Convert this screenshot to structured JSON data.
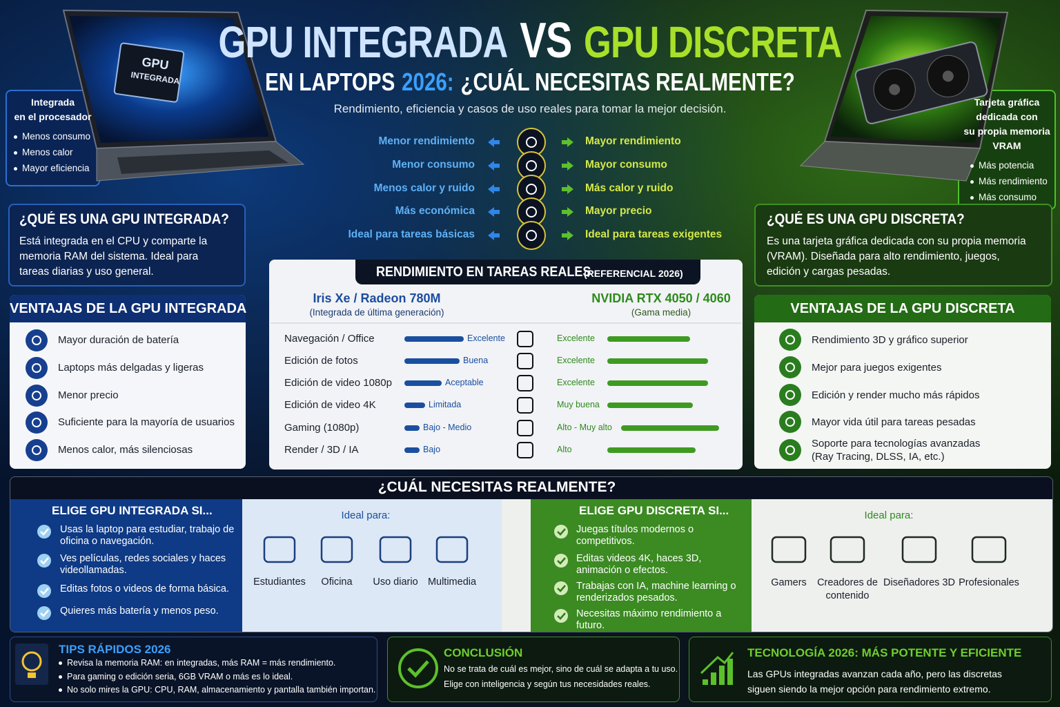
{
  "header": {
    "title_left": "GPU INTEGRADA",
    "vs": "VS",
    "title_right": "GPU DISCRETA",
    "subtitle_lead": "EN LAPTOPS",
    "subtitle_year": "2026:",
    "subtitle_question": "¿CUÁL NECESITAS REALMENTE?",
    "tagline": "Rendimiento, eficiencia y casos de uso reales para tomar la mejor decisión."
  },
  "laptops": {
    "left_chip": [
      "GPU",
      "INTEGRADA"
    ]
  },
  "callouts": {
    "left": {
      "title": [
        "Integrada",
        "en el procesador"
      ],
      "items": [
        "Menos consumo",
        "Menos calor",
        "Mayor eficiencia"
      ]
    },
    "right": {
      "title": [
        "Tarjeta gráfica",
        "dedicada con",
        "su propia memoria",
        "VRAM"
      ],
      "items": [
        "Más potencia",
        "Más rendimiento",
        "Más consumo"
      ]
    }
  },
  "comparison": {
    "left": [
      "Menor rendimiento",
      "Menor consumo",
      "Menos calor y ruido",
      "Más económica",
      "Ideal para tareas básicas"
    ],
    "right": [
      "Mayor rendimiento",
      "Mayor consumo",
      "Más calor y ruido",
      "Mayor precio",
      "Ideal para tareas exigentes"
    ]
  },
  "definitions": {
    "integrated": {
      "title": "¿QUÉ ES UNA GPU INTEGRADA?",
      "text": "Está integrada en el CPU y comparte la memoria RAM del sistema. Ideal para tareas diarias y uso general."
    },
    "discrete": {
      "title": "¿QUÉ ES UNA GPU DISCRETA?",
      "text": "Es una tarjeta gráfica dedicada con su propia memoria (VRAM). Diseñada para alto rendimiento, juegos, edición y cargas pesadas."
    }
  },
  "advantages": {
    "integrated": {
      "title": "VENTAJAS DE LA GPU INTEGRADA",
      "items": [
        "Mayor duración de batería",
        "Laptops más delgadas y ligeras",
        "Menor precio",
        "Suficiente para la mayoría de usuarios",
        "Menos calor, más silenciosas"
      ]
    },
    "discrete": {
      "title": "VENTAJAS DE LA GPU DISCRETA",
      "items": [
        "Rendimiento 3D y gráfico superior",
        "Mejor para juegos exigentes",
        "Edición y render mucho más rápidos",
        "Mayor vida útil para tareas pesadas",
        "Soporte para tecnologías avanzadas (Ray Tracing, DLSS, IA, etc.)"
      ]
    }
  },
  "performance": {
    "title": "RENDIMIENTO EN TAREAS REALES",
    "note": "(REFERENCIAL 2026)",
    "left": {
      "name": "Iris Xe / Radeon 780M",
      "sub": "(Integrada de última generación)"
    },
    "right": {
      "name": "NVIDIA RTX 4050 / 4060",
      "sub": "(Gama media)"
    },
    "rows": [
      {
        "task": "Navegación / Office",
        "integrated": "Excelente",
        "discrete": "Excelente"
      },
      {
        "task": "Edición de fotos",
        "integrated": "Buena",
        "discrete": "Excelente"
      },
      {
        "task": "Edición de video 1080p",
        "integrated": "Aceptable",
        "discrete": "Excelente"
      },
      {
        "task": "Edición de video 4K",
        "integrated": "Limitada",
        "discrete": "Muy buena"
      },
      {
        "task": "Gaming (1080p)",
        "integrated": "Bajo - Medio",
        "discrete": "Alto - Muy alto"
      },
      {
        "task": "Render / 3D / IA",
        "integrated": "Bajo",
        "discrete": "Alto"
      }
    ]
  },
  "choose": {
    "title": "¿CUÁL NECESITAS REALMENTE?",
    "integrated": {
      "title": "ELIGE GPU INTEGRADA SI...",
      "items": [
        "Usas la laptop para estudiar, trabajo de oficina o navegación.",
        "Ves películas, redes sociales y haces videollamadas.",
        "Editas fotos o videos de forma básica.",
        "Quieres más batería y menos peso."
      ],
      "ideal_label": "Ideal para:",
      "users": [
        "Estudiantes",
        "Oficina",
        "Uso diario",
        "Multimedia"
      ]
    },
    "discrete": {
      "title": "ELIGE GPU DISCRETA SI...",
      "items": [
        "Juegas títulos modernos o competitivos.",
        "Editas videos 4K, haces 3D, animación o efectos.",
        "Trabajas con IA, machine learning o renderizados pesados.",
        "Necesitas máximo rendimiento a futuro."
      ],
      "ideal_label": "Ideal para:",
      "users": [
        "Gamers",
        "Creadores de contenido",
        "Diseñadores 3D",
        "Profesionales"
      ]
    }
  },
  "footer": {
    "tips": {
      "title": "TIPS RÁPIDOS 2026",
      "items": [
        "Revisa la memoria RAM: en integradas, más RAM = más rendimiento.",
        "Para gaming o edición seria, 6GB VRAM o más es lo ideal.",
        "No solo mires la GPU: CPU, RAM, almacenamiento y pantalla también importan."
      ]
    },
    "conclusion": {
      "title": "CONCLUSIÓN",
      "text": [
        "No se trata de cuál es mejor, sino de cuál se adapta a tu uso.",
        "Elige con inteligencia y según tus necesidades reales."
      ]
    },
    "technology": {
      "title": "TECNOLOGÍA 2026: MÁS POTENTE Y EFICIENTE",
      "text": "Las GPUs integradas avanzan cada año, pero las discretas siguen siendo la mejor opción para rendimiento extremo."
    }
  }
}
